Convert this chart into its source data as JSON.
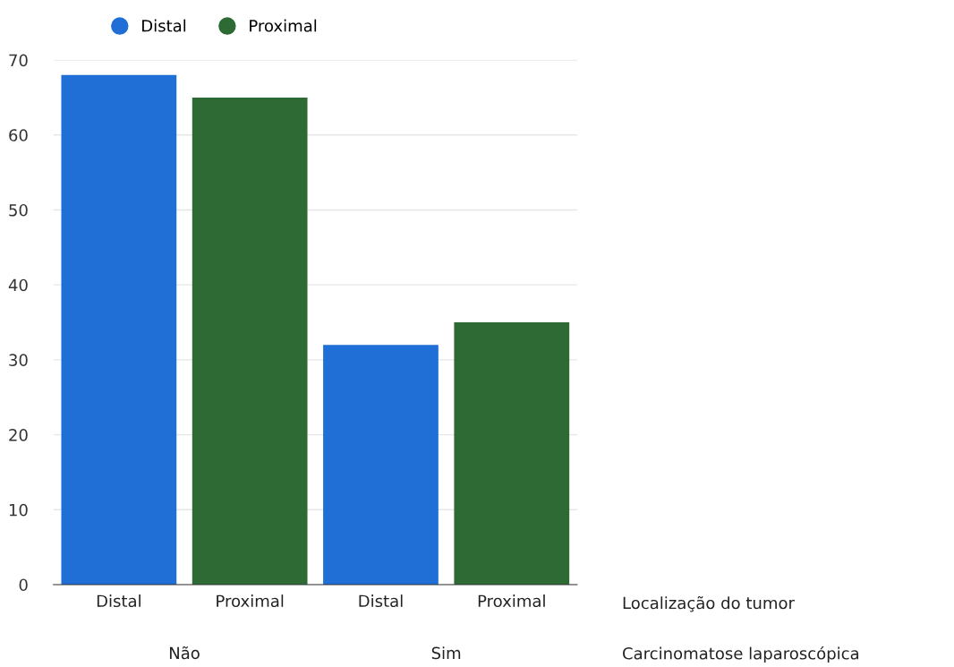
{
  "chart_data": {
    "type": "bar",
    "categories": [
      "Distal",
      "Proximal",
      "Distal",
      "Proximal"
    ],
    "series": [
      {
        "name": "Distal",
        "color": "#1f6fd6",
        "values": [
          68,
          null,
          32,
          null
        ]
      },
      {
        "name": "Proximal",
        "color": "#2d6a34",
        "values": [
          null,
          65,
          null,
          35
        ]
      }
    ],
    "xlabel": "Localização do tumor",
    "annotations": [
      "Não",
      "Sim",
      "Carcinomatose laparoscópica"
    ],
    "ylim": [
      0,
      70
    ],
    "yticks": [
      0,
      10,
      20,
      30,
      40,
      50,
      60,
      70
    ],
    "grid": "y",
    "legend": "top"
  }
}
